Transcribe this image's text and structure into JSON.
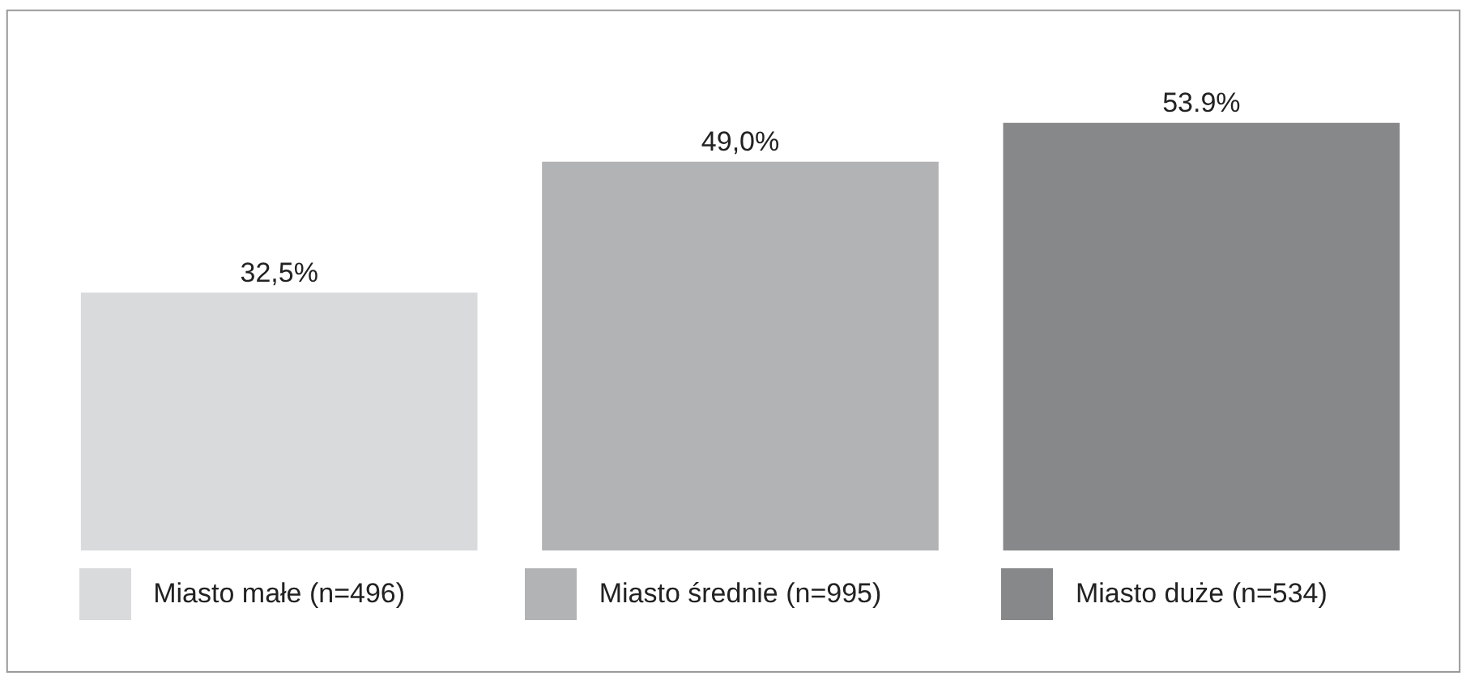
{
  "chart_data": {
    "type": "bar",
    "categories": [
      "Miasto małe (n=496)",
      "Miasto średnie (n=995)",
      "Miasto duże (n=534)"
    ],
    "tick_labels": "x",
    "colors": [
      "#d9dadb",
      "#b2b3b5",
      "#878889"
    ],
    "values": [
      32.5,
      49.0,
      53.9
    ],
    "value_labels": [
      "32,5%",
      "49,0%",
      "53.9%"
    ]
  }
}
